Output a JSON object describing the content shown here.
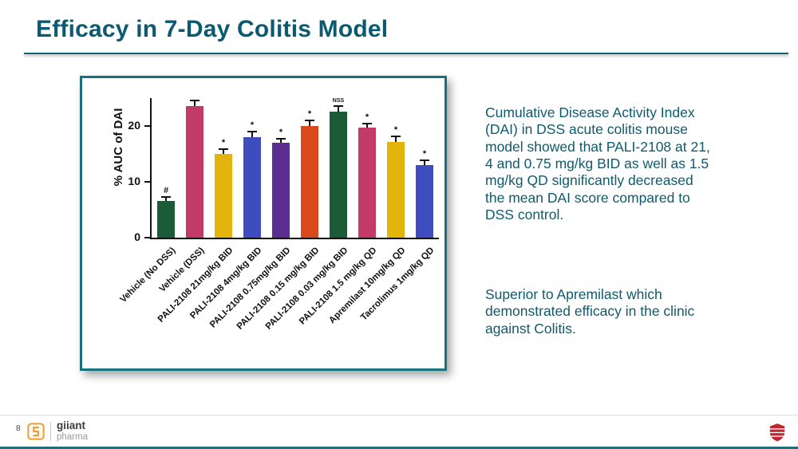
{
  "slide": {
    "title": "Efficacy in 7-Day Colitis Model",
    "page_number": "8"
  },
  "chart_data": {
    "type": "bar",
    "title": "",
    "xlabel": "",
    "ylabel": "% AUC of DAI",
    "ylim": [
      0,
      25
    ],
    "yticks": [
      0,
      10,
      20
    ],
    "grid": false,
    "legend": "none",
    "categories": [
      "Vehicle (No DSS)",
      "Vehicle (DSS)",
      "PALI-2108 21mg/kg BID",
      "PALI-2108 4mg/kg BID",
      "PALI-2108 0.75mg/kg BID",
      "PALI-2108 0.15 mg/kg BID",
      "PALI-2108 0.03 mg/kg BID",
      "PALI-2108 1.5 mg/kg QD",
      "Apremilast 10mg/kg QD",
      "Tacrolimus 1mg/kg QD"
    ],
    "values": [
      6.5,
      23.5,
      15,
      18,
      17,
      20,
      23,
      19.7,
      17.2,
      13
    ],
    "errors": [
      0.5,
      0.8,
      0.7,
      0.8,
      0.5,
      0.8,
      0.8,
      0.6,
      0.9,
      0.7
    ],
    "annotations": [
      "#",
      "",
      "*",
      "*",
      "*",
      "*",
      "NSS",
      "*",
      "*",
      "*"
    ],
    "bar_colors": [
      "#1c5b38",
      "#c23a68",
      "#e3b50c",
      "#3e4cc0",
      "#5a2f91",
      "#da491d",
      "#1c5b38",
      "#c23a68",
      "#e3b50c",
      "#3e4cc0"
    ]
  },
  "commentary": {
    "paragraph1": "Cumulative Disease Activity Index (DAI) in DSS acute colitis mouse model showed that PALI-2108 at 21, 4 and 0.75 mg/kg BID as well as 1.5 mg/kg QD significantly decreased the mean DAI score compared to DSS control.",
    "paragraph2": "Superior to Apremilast which demonstrated efficacy in the clinic against Colitis."
  },
  "footer": {
    "logo_name": "giiant",
    "logo_sub": "pharma"
  },
  "colors": {
    "accent_teal": "#0c5a70",
    "panel_border_teal": "#17727e",
    "logo_orange": "#f09c2e",
    "shield_red": "#c02630"
  }
}
